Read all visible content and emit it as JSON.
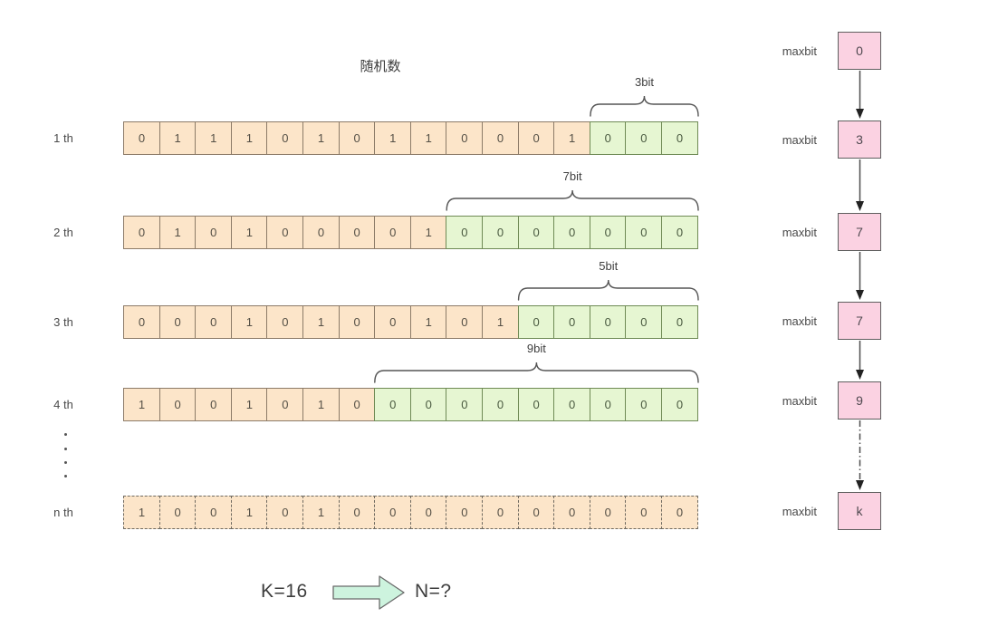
{
  "title": "随机数",
  "rows": [
    {
      "label": "1 th",
      "bits": [
        "0",
        "1",
        "1",
        "1",
        "0",
        "1",
        "0",
        "1",
        "1",
        "0",
        "0",
        "0",
        "1",
        "0",
        "0",
        "0"
      ],
      "green_count": 3,
      "brace_label": "3bit",
      "dashed": false
    },
    {
      "label": "2 th",
      "bits": [
        "0",
        "1",
        "0",
        "1",
        "0",
        "0",
        "0",
        "0",
        "1",
        "0",
        "0",
        "0",
        "0",
        "0",
        "0",
        "0"
      ],
      "green_count": 7,
      "brace_label": "7bit",
      "dashed": false
    },
    {
      "label": "3 th",
      "bits": [
        "0",
        "0",
        "0",
        "1",
        "0",
        "1",
        "0",
        "0",
        "1",
        "0",
        "1",
        "0",
        "0",
        "0",
        "0",
        "0"
      ],
      "green_count": 5,
      "brace_label": "5bit",
      "dashed": false
    },
    {
      "label": "4 th",
      "bits": [
        "1",
        "0",
        "0",
        "1",
        "0",
        "1",
        "0",
        "0",
        "0",
        "0",
        "0",
        "0",
        "0",
        "0",
        "0",
        "0"
      ],
      "green_count": 9,
      "brace_label": "9bit",
      "dashed": false
    },
    {
      "label": "n th",
      "bits": [
        "1",
        "0",
        "0",
        "1",
        "0",
        "1",
        "0",
        "0",
        "0",
        "0",
        "0",
        "0",
        "0",
        "0",
        "0",
        "0"
      ],
      "green_count": 0,
      "brace_label": "",
      "dashed": true
    }
  ],
  "maxbit": {
    "label": "maxbit",
    "values": [
      "0",
      "3",
      "7",
      "7",
      "9",
      "k"
    ],
    "last_arrow_dashed": true
  },
  "footer": {
    "k_label": "K=16",
    "n_label": "N=?"
  },
  "colors": {
    "cell_orange_fill": "#fce5c9",
    "cell_orange_border": "#8c7b68",
    "cell_green_fill": "#e6f6d2",
    "cell_green_border": "#6f8a55",
    "box_pink_fill": "#fbd2e2",
    "box_pink_border": "#5f5f5f",
    "arrow_mint_fill": "#cdf3de",
    "arrow_stroke": "#4d4d4d",
    "text": "#4a4a4a"
  }
}
